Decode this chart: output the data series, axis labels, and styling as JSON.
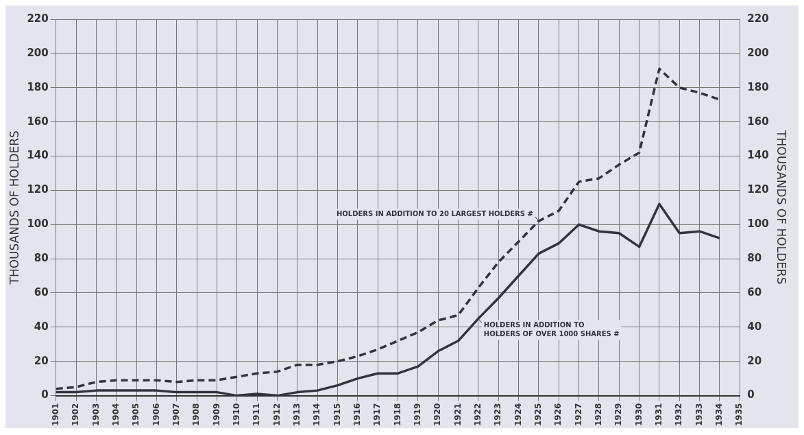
{
  "chart_data": {
    "type": "line",
    "ylabel": "THOUSANDS OF HOLDERS",
    "y2label": "THOUSANDS OF HOLDERS",
    "categories": [
      "1901",
      "1902",
      "1903",
      "1904",
      "1905",
      "1906",
      "1907",
      "1908",
      "1909",
      "1910",
      "1911",
      "1912",
      "1913",
      "1914",
      "1915",
      "1916",
      "1917",
      "1918",
      "1919",
      "1920",
      "1921",
      "1922",
      "1923",
      "1924",
      "1925",
      "1926",
      "1927",
      "1928",
      "1929",
      "1930",
      "1931",
      "1932",
      "1933",
      "1934",
      "1935"
    ],
    "series": [
      {
        "name": "HOLDERS IN ADDITION TO 20 LARGEST HOLDERS #",
        "color": "#333340",
        "line_style": "dashed",
        "values": [
          4,
          5,
          8,
          9,
          9,
          9,
          8,
          9,
          9,
          11,
          13,
          14,
          18,
          18,
          20,
          23,
          27,
          32,
          37,
          44,
          47,
          63,
          78,
          90,
          102,
          108,
          125,
          127,
          135,
          142,
          191,
          180,
          177,
          173,
          null
        ]
      },
      {
        "name": "HOLDERS IN ADDITION TO HOLDERS OF OVER 1000 SHARES #",
        "color": "#333340",
        "line_style": "solid",
        "values": [
          2,
          2,
          3,
          3,
          3,
          3,
          2,
          2,
          2,
          0,
          1,
          0,
          2,
          3,
          6,
          10,
          13,
          13,
          17,
          26,
          32,
          45,
          57,
          70,
          83,
          89,
          100,
          96,
          95,
          87,
          112,
          95,
          96,
          92,
          null
        ]
      }
    ],
    "ylim": [
      0,
      220
    ],
    "yticks": [
      0,
      20,
      40,
      60,
      80,
      100,
      120,
      140,
      160,
      180,
      200,
      220
    ],
    "y2lim": [
      0,
      220
    ],
    "y2ticks": [
      0,
      20,
      40,
      60,
      80,
      100,
      120,
      140,
      160,
      180,
      200,
      220
    ],
    "grid": true,
    "marker": "none"
  }
}
